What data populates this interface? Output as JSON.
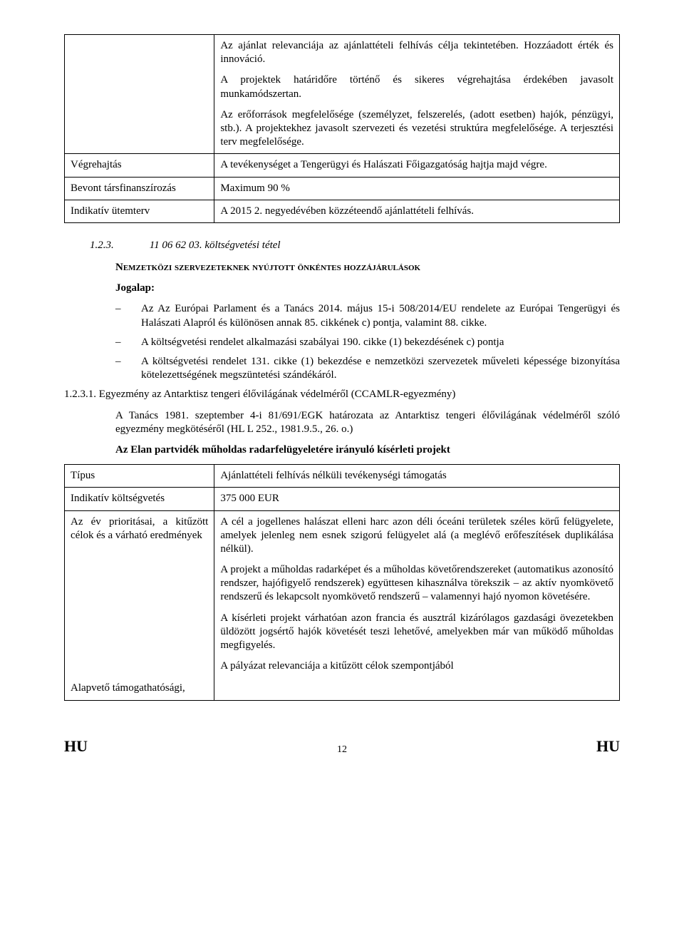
{
  "table1": {
    "cell1": "Az ajánlat relevanciája az ajánlattételi felhívás célja tekintetében. Hozzáadott érték és innováció.",
    "cell2": "A projektek határidőre történő és sikeres végrehajtása érdekében javasolt munkamódszertan.",
    "cell3": "Az erőforrások megfelelősége (személyzet, felszerelés, (adott esetben) hajók, pénzügyi, stb.). A projektekhez javasolt szervezeti és vezetési struktúra megfelelősége. A terjesztési terv megfelelősége.",
    "row2_label": "Végrehajtás",
    "row2_value": "A tevékenységet a Tengerügyi és Halászati Főigazgatóság hajtja majd végre.",
    "row3_label": "Bevont társfinanszírozás",
    "row3_value": "Maximum 90 %",
    "row4_label": "Indikatív ütemterv",
    "row4_value": "A 2015 2. negyedévében közzéteendő ajánlattételi felhívás."
  },
  "section": {
    "num": "1.2.3.",
    "title": "11 06 62 03. költségvetési tétel",
    "smallcaps": "Nemzetközi szervezeteknek nyújtott önkéntes hozzájárulások",
    "jogalap": "Jogalap:",
    "d1": "Az Az Európai Parlament és a Tanács 2014. május 15-i 508/2014/EU rendelete az Európai Tengerügyi és Halászati Alapról és különösen annak 85. cikkének c) pontja, valamint 88. cikke.",
    "d2": "A költségvetési rendelet alkalmazási szabályai 190. cikke (1) bekezdésének c) pontja",
    "d3": "A költségvetési rendelet 131. cikke (1) bekezdése e nemzetközi szervezetek műveleti képessége bizonyítása kötelezettségének megszüntetési szándékáról.",
    "sub_num": "1.2.3.1. Egyezmény az Antarktisz tengeri élővilágának védelméről (CCAMLR-egyezmény)",
    "sub_p1": "A Tanács 1981. szeptember 4-i 81/691/EGK határozata az Antarktisz tengeri élővilágának védelméről szóló egyezmény megkötéséről (HL L 252., 1981.9.5., 26. o.)",
    "sub_p2": "Az Elan partvidék műholdas radarfelügyeletére irányuló kísérleti projekt"
  },
  "table2": {
    "r1_label": "Típus",
    "r1_value": "Ajánlattételi felhívás nélküli tevékenységi támogatás",
    "r2_label": "Indikatív költségvetés",
    "r2_value": "375 000 EUR",
    "r3_label": "Az év prioritásai, a kitűzött célok és a várható eredmények",
    "r3_p1": "A cél a jogellenes halászat elleni harc azon déli óceáni területek széles körű felügyelete, amelyek jelenleg nem esnek szigorú felügyelet alá (a meglévő erőfeszítések duplikálása nélkül).",
    "r3_p2": "A projekt a műholdas radarképet és a műholdas követőrendszereket (automatikus azonosító rendszer, hajófigyelő rendszerek) együttesen kihasználva törekszik – az aktív nyomkövető rendszerű és lekapcsolt nyomkövető rendszerű – valamennyi hajó nyomon követésére.",
    "r3_p3": "A kísérleti projekt várhatóan azon francia és ausztrál kizárólagos gazdasági övezetekben üldözött jogsértő hajók követését teszi lehetővé, amelyekben már van működő műholdas megfigyelés.",
    "r4_label": "Alapvető támogathatósági,",
    "r4_value": "A pályázat relevanciája a kitűzött célok szempontjából"
  },
  "footer": {
    "left": "HU",
    "page": "12",
    "right": "HU"
  }
}
